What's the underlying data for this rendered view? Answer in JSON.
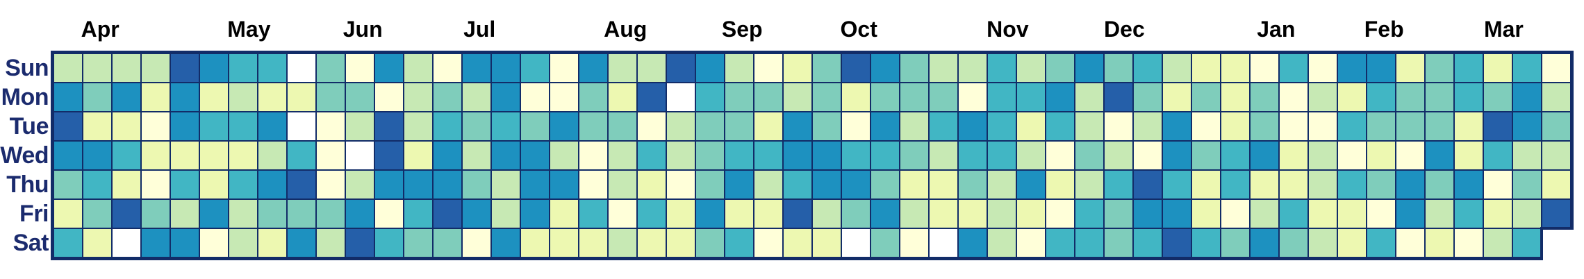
{
  "chart_data": {
    "type": "heatmap",
    "title": "",
    "subtitle": "",
    "description": "Calendar heatmap, one column per week (Apr through Mar), one row per weekday. Cell color encodes intensity on a YlGnBu scale; white cells are missing/none. Last column has no Saturday cell.",
    "rows": [
      "Sun",
      "Mon",
      "Tue",
      "Wed",
      "Thu",
      "Fri",
      "Sat"
    ],
    "months": [
      {
        "label": "Apr",
        "week_center": 1.6
      },
      {
        "label": "May",
        "week_center": 6.7
      },
      {
        "label": "Jun",
        "week_center": 10.6
      },
      {
        "label": "Jul",
        "week_center": 14.6
      },
      {
        "label": "Aug",
        "week_center": 19.6
      },
      {
        "label": "Sep",
        "week_center": 23.6
      },
      {
        "label": "Oct",
        "week_center": 27.6
      },
      {
        "label": "Nov",
        "week_center": 32.7
      },
      {
        "label": "Dec",
        "week_center": 36.7
      },
      {
        "label": "Jan",
        "week_center": 41.9
      },
      {
        "label": "Feb",
        "week_center": 45.6
      },
      {
        "label": "Mar",
        "week_center": 49.7
      }
    ],
    "weeks": 52,
    "legend_position": "none",
    "grid_lines": true,
    "palette": {
      "0": "#ffffff",
      "1": "#ffffd9",
      "2": "#edf8b1",
      "3": "#c7e9b4",
      "4": "#7fcdbb",
      "5": "#41b6c4",
      "6": "#1d91c0",
      "7": "#255fa9"
    },
    "palette_note": "intensity levels 0-7; 0 = white/missing, 7 = darkest blue (YlGnBu)",
    "grid": [
      [
        3,
        3,
        3,
        3,
        7,
        6,
        5,
        5,
        0,
        4,
        1,
        6,
        3,
        1,
        6,
        6,
        5,
        1,
        6,
        3,
        3,
        7,
        6,
        3,
        1,
        2,
        4,
        7,
        6,
        4,
        3,
        3,
        5,
        3,
        4,
        6,
        4,
        5,
        3,
        2,
        2,
        1,
        5,
        1,
        6,
        6,
        2,
        4,
        5,
        2,
        5,
        1
      ],
      [
        6,
        4,
        6,
        2,
        6,
        2,
        3,
        2,
        2,
        4,
        4,
        1,
        3,
        4,
        3,
        6,
        1,
        1,
        4,
        2,
        7,
        0,
        5,
        4,
        4,
        3,
        4,
        2,
        4,
        4,
        4,
        1,
        5,
        5,
        6,
        3,
        7,
        4,
        2,
        4,
        2,
        4,
        1,
        3,
        2,
        5,
        4,
        4,
        5,
        4,
        6,
        3
      ],
      [
        7,
        2,
        2,
        1,
        6,
        5,
        5,
        6,
        0,
        1,
        3,
        7,
        3,
        5,
        4,
        5,
        4,
        6,
        4,
        4,
        1,
        3,
        4,
        4,
        2,
        6,
        4,
        1,
        6,
        3,
        5,
        6,
        5,
        2,
        5,
        3,
        1,
        3,
        6,
        1,
        2,
        4,
        1,
        1,
        5,
        4,
        4,
        4,
        2,
        7,
        6,
        4
      ],
      [
        6,
        6,
        5,
        2,
        2,
        2,
        2,
        3,
        5,
        1,
        0,
        7,
        2,
        6,
        3,
        6,
        6,
        3,
        1,
        3,
        5,
        3,
        4,
        5,
        5,
        6,
        6,
        5,
        5,
        4,
        3,
        5,
        5,
        3,
        1,
        4,
        3,
        1,
        6,
        4,
        5,
        6,
        2,
        3,
        1,
        2,
        1,
        6,
        2,
        5,
        3,
        3
      ],
      [
        4,
        5,
        2,
        1,
        5,
        2,
        5,
        6,
        7,
        1,
        3,
        6,
        6,
        6,
        4,
        3,
        6,
        6,
        1,
        3,
        2,
        1,
        4,
        6,
        3,
        5,
        6,
        6,
        4,
        2,
        2,
        4,
        3,
        6,
        2,
        3,
        5,
        7,
        5,
        2,
        5,
        2,
        2,
        3,
        5,
        4,
        6,
        4,
        6,
        1,
        4,
        2
      ],
      [
        2,
        4,
        7,
        4,
        3,
        6,
        3,
        4,
        4,
        4,
        6,
        1,
        5,
        7,
        6,
        3,
        6,
        2,
        5,
        1,
        5,
        2,
        6,
        2,
        2,
        7,
        3,
        4,
        6,
        3,
        2,
        2,
        3,
        2,
        1,
        5,
        4,
        6,
        6,
        2,
        1,
        3,
        5,
        2,
        2,
        1,
        6,
        3,
        5,
        2,
        3,
        7
      ],
      [
        5,
        2,
        0,
        6,
        6,
        1,
        3,
        2,
        6,
        3,
        7,
        5,
        4,
        4,
        1,
        6,
        2,
        2,
        2,
        3,
        2,
        2,
        4,
        5,
        1,
        2,
        2,
        0,
        4,
        1,
        0,
        6,
        3,
        1,
        5,
        5,
        4,
        5,
        7,
        5,
        4,
        6,
        4,
        3,
        2,
        5,
        1,
        2,
        1,
        3,
        5,
        null
      ]
    ]
  },
  "colors": {
    "background": "#ffffff",
    "grid_line": "#122c68",
    "day_label": "#1b2b6e",
    "month_label": "#000000"
  }
}
